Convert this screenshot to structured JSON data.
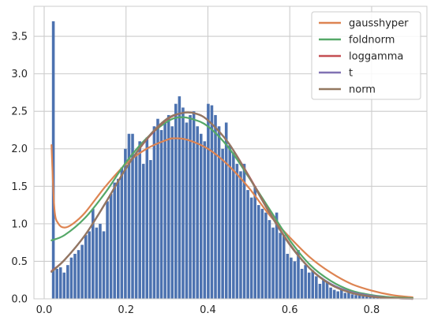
{
  "chart_data": {
    "type": "bar",
    "title": "",
    "xlabel": "",
    "ylabel": "",
    "xlim": [
      -0.025,
      0.935
    ],
    "ylim": [
      0,
      3.9
    ],
    "grid": true,
    "legend_position": "top-right",
    "x_ticks": [
      {
        "value": 0.0,
        "label": "0.0"
      },
      {
        "value": 0.2,
        "label": "0.2"
      },
      {
        "value": 0.4,
        "label": "0.4"
      },
      {
        "value": 0.6,
        "label": "0.6"
      },
      {
        "value": 0.8,
        "label": "0.8"
      }
    ],
    "y_ticks": [
      {
        "value": 0.0,
        "label": "0.0"
      },
      {
        "value": 0.5,
        "label": "0.5"
      },
      {
        "value": 1.0,
        "label": "1.0"
      },
      {
        "value": 1.5,
        "label": "1.5"
      },
      {
        "value": 2.0,
        "label": "2.0"
      },
      {
        "value": 2.5,
        "label": "2.5"
      },
      {
        "value": 3.0,
        "label": "3.0"
      },
      {
        "value": 3.5,
        "label": "3.5"
      }
    ],
    "histogram": {
      "color": "#4c72b0",
      "bin_start": 0.018,
      "bin_width": 0.0088,
      "values": [
        3.7,
        0.4,
        0.42,
        0.35,
        0.45,
        0.55,
        0.6,
        0.65,
        0.72,
        0.85,
        0.9,
        1.2,
        0.95,
        1.0,
        0.9,
        1.3,
        1.4,
        1.55,
        1.6,
        1.75,
        2.0,
        2.2,
        2.2,
        1.95,
        2.1,
        1.8,
        2.15,
        1.85,
        2.3,
        2.4,
        2.25,
        2.35,
        2.45,
        2.3,
        2.6,
        2.7,
        2.55,
        2.35,
        2.45,
        2.5,
        2.3,
        2.2,
        2.1,
        2.6,
        2.58,
        2.45,
        2.3,
        2.0,
        2.35,
        2.05,
        1.95,
        1.8,
        1.7,
        1.8,
        1.45,
        1.35,
        1.5,
        1.25,
        1.2,
        1.15,
        1.05,
        0.95,
        1.15,
        0.88,
        0.85,
        0.6,
        0.55,
        0.5,
        0.65,
        0.4,
        0.45,
        0.35,
        0.38,
        0.3,
        0.2,
        0.25,
        0.22,
        0.15,
        0.12,
        0.1,
        0.12,
        0.08,
        0.1,
        0.06,
        0.05,
        0.06,
        0.08,
        0.04,
        0.05,
        0.03,
        0.02,
        0.04,
        0.02,
        0.02,
        0.02,
        0.01,
        0.01,
        0.01,
        0.01,
        0.01
      ]
    },
    "series": [
      {
        "name": "gausshyper",
        "color": "#dd8452",
        "points": [
          [
            0.018,
            2.05
          ],
          [
            0.025,
            1.2
          ],
          [
            0.035,
            1.0
          ],
          [
            0.05,
            0.95
          ],
          [
            0.07,
            1.0
          ],
          [
            0.1,
            1.15
          ],
          [
            0.15,
            1.5
          ],
          [
            0.2,
            1.8
          ],
          [
            0.25,
            2.0
          ],
          [
            0.3,
            2.12
          ],
          [
            0.32,
            2.14
          ],
          [
            0.35,
            2.12
          ],
          [
            0.4,
            2.0
          ],
          [
            0.45,
            1.78
          ],
          [
            0.5,
            1.48
          ],
          [
            0.55,
            1.12
          ],
          [
            0.6,
            0.82
          ],
          [
            0.65,
            0.55
          ],
          [
            0.7,
            0.35
          ],
          [
            0.75,
            0.2
          ],
          [
            0.8,
            0.11
          ],
          [
            0.85,
            0.05
          ],
          [
            0.9,
            0.02
          ]
        ]
      },
      {
        "name": "foldnorm",
        "color": "#55a868",
        "points": [
          [
            0.018,
            0.78
          ],
          [
            0.05,
            0.85
          ],
          [
            0.1,
            1.08
          ],
          [
            0.15,
            1.42
          ],
          [
            0.2,
            1.82
          ],
          [
            0.25,
            2.14
          ],
          [
            0.3,
            2.36
          ],
          [
            0.33,
            2.42
          ],
          [
            0.36,
            2.4
          ],
          [
            0.4,
            2.3
          ],
          [
            0.45,
            2.02
          ],
          [
            0.5,
            1.62
          ],
          [
            0.55,
            1.2
          ],
          [
            0.6,
            0.78
          ],
          [
            0.65,
            0.45
          ],
          [
            0.7,
            0.24
          ],
          [
            0.75,
            0.11
          ],
          [
            0.8,
            0.05
          ],
          [
            0.85,
            0.02
          ],
          [
            0.9,
            0.01
          ]
        ]
      },
      {
        "name": "loggamma",
        "color": "#c44e52",
        "points": [
          [
            0.018,
            0.37
          ],
          [
            0.05,
            0.52
          ],
          [
            0.1,
            0.85
          ],
          [
            0.15,
            1.28
          ],
          [
            0.2,
            1.74
          ],
          [
            0.25,
            2.12
          ],
          [
            0.3,
            2.39
          ],
          [
            0.34,
            2.48
          ],
          [
            0.37,
            2.47
          ],
          [
            0.4,
            2.38
          ],
          [
            0.45,
            2.08
          ],
          [
            0.5,
            1.64
          ],
          [
            0.55,
            1.16
          ],
          [
            0.6,
            0.73
          ],
          [
            0.65,
            0.4
          ],
          [
            0.7,
            0.19
          ],
          [
            0.75,
            0.08
          ],
          [
            0.8,
            0.03
          ],
          [
            0.85,
            0.01
          ],
          [
            0.9,
            0.0
          ]
        ]
      },
      {
        "name": "t",
        "color": "#8172b3",
        "points": [
          [
            0.018,
            0.36
          ],
          [
            0.05,
            0.52
          ],
          [
            0.1,
            0.85
          ],
          [
            0.15,
            1.28
          ],
          [
            0.2,
            1.74
          ],
          [
            0.25,
            2.13
          ],
          [
            0.3,
            2.4
          ],
          [
            0.34,
            2.48
          ],
          [
            0.37,
            2.47
          ],
          [
            0.4,
            2.38
          ],
          [
            0.45,
            2.08
          ],
          [
            0.5,
            1.63
          ],
          [
            0.55,
            1.15
          ],
          [
            0.6,
            0.72
          ],
          [
            0.65,
            0.4
          ],
          [
            0.7,
            0.2
          ],
          [
            0.75,
            0.09
          ],
          [
            0.8,
            0.04
          ],
          [
            0.85,
            0.01
          ],
          [
            0.9,
            0.0
          ]
        ]
      },
      {
        "name": "norm",
        "color": "#937860",
        "points": [
          [
            0.018,
            0.36
          ],
          [
            0.05,
            0.52
          ],
          [
            0.1,
            0.85
          ],
          [
            0.15,
            1.28
          ],
          [
            0.2,
            1.74
          ],
          [
            0.25,
            2.13
          ],
          [
            0.3,
            2.4
          ],
          [
            0.34,
            2.48
          ],
          [
            0.37,
            2.47
          ],
          [
            0.4,
            2.38
          ],
          [
            0.45,
            2.08
          ],
          [
            0.5,
            1.63
          ],
          [
            0.55,
            1.15
          ],
          [
            0.6,
            0.72
          ],
          [
            0.65,
            0.4
          ],
          [
            0.7,
            0.19
          ],
          [
            0.75,
            0.08
          ],
          [
            0.8,
            0.03
          ],
          [
            0.85,
            0.01
          ],
          [
            0.9,
            0.0
          ]
        ]
      }
    ]
  }
}
